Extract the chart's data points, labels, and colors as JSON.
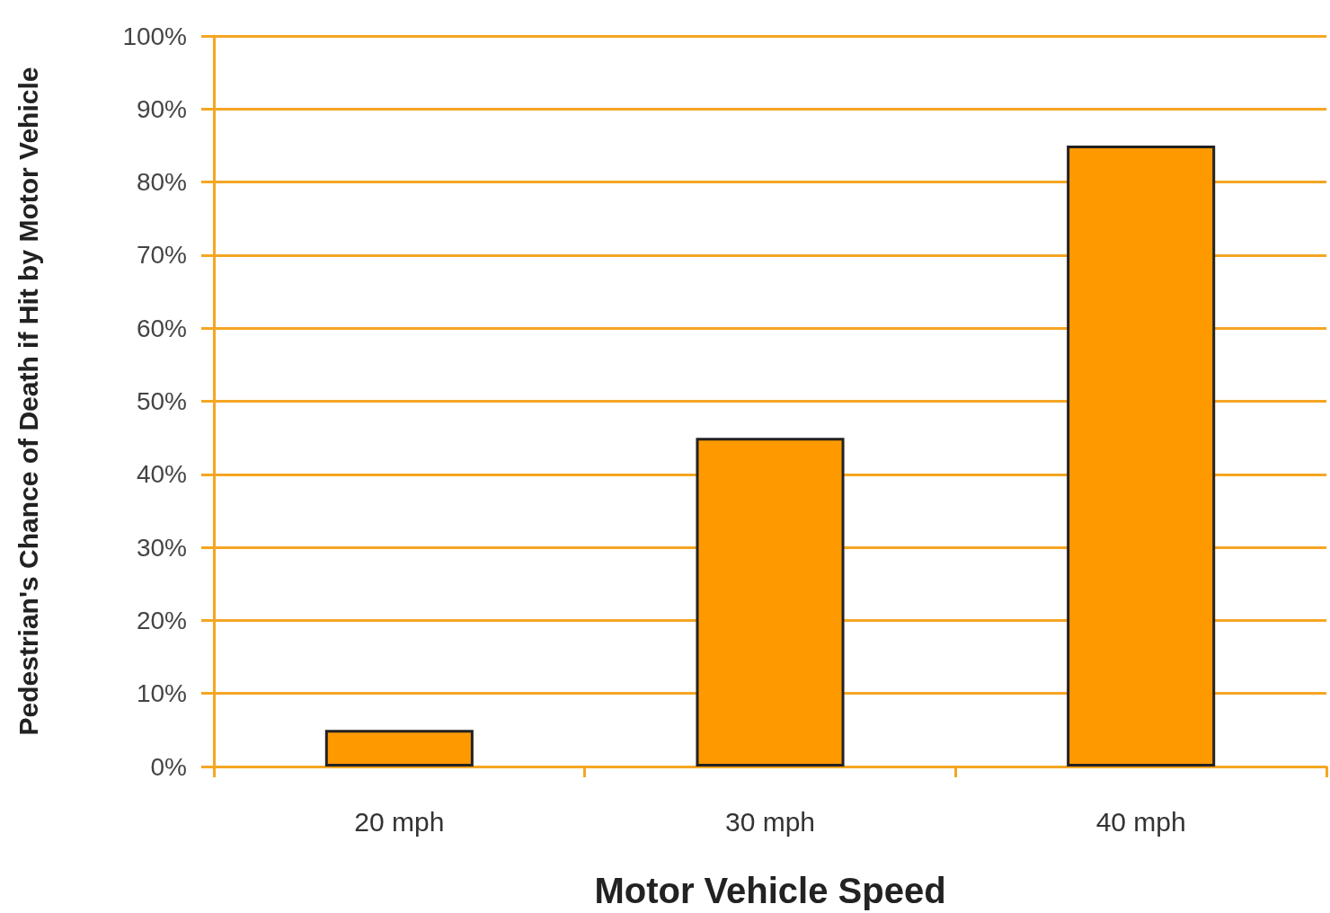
{
  "chart_data": {
    "type": "bar",
    "xlabel": "Motor Vehicle Speed",
    "ylabel": "Pedestrian's Chance of Death if Hit by Motor Vehicle",
    "categories": [
      "20 mph",
      "30 mph",
      "40 mph"
    ],
    "values": [
      5,
      45,
      85
    ],
    "color": "#ff9900",
    "ylim": [
      0,
      100
    ],
    "yticks": [
      {
        "value": 0,
        "label": "0%"
      },
      {
        "value": 10,
        "label": "10%"
      },
      {
        "value": 20,
        "label": "20%"
      },
      {
        "value": 30,
        "label": "30%"
      },
      {
        "value": 40,
        "label": "40%"
      },
      {
        "value": 50,
        "label": "50%"
      },
      {
        "value": 60,
        "label": "60%"
      },
      {
        "value": 70,
        "label": "70%"
      },
      {
        "value": 80,
        "label": "80%"
      },
      {
        "value": 90,
        "label": "90%"
      },
      {
        "value": 100,
        "label": "100%"
      }
    ],
    "grid": true
  }
}
